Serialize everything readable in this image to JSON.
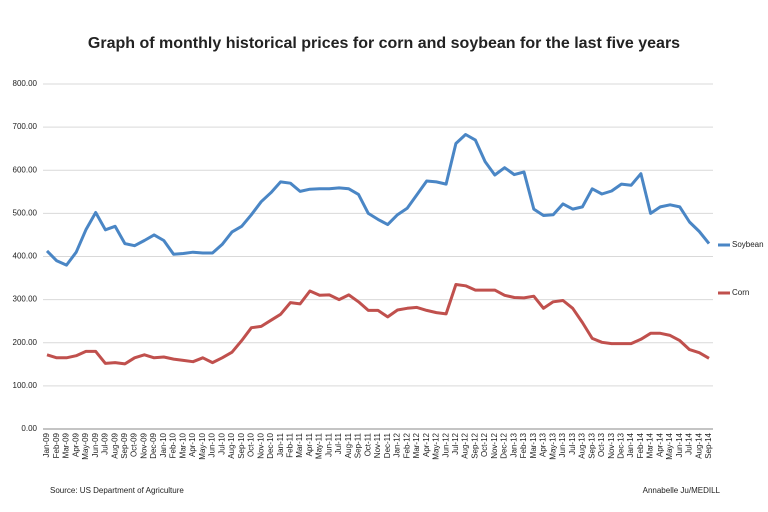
{
  "chart_data": {
    "type": "line",
    "title": "Graph of monthly historical prices for corn and soybean for the last five years",
    "source": "Source: US Department of Agriculture",
    "credit": "Annabelle Ju/MEDILL",
    "categories": [
      "Jan-09",
      "Feb-09",
      "Mar-09",
      "Apr-09",
      "May-09",
      "Jun-09",
      "Jul-09",
      "Aug-09",
      "Sep-09",
      "Oct-09",
      "Nov-09",
      "Dec-09",
      "Jan-10",
      "Feb-10",
      "Mar-10",
      "Apr-10",
      "May-10",
      "Jun-10",
      "Jul-10",
      "Aug-10",
      "Sep-10",
      "Oct-10",
      "Nov-10",
      "Dec-10",
      "Jan-11",
      "Feb-11",
      "Mar-11",
      "Apr-11",
      "May-11",
      "Jun-11",
      "Jul-11",
      "Aug-11",
      "Sep-11",
      "Oct-11",
      "Nov-11",
      "Dec-11",
      "Jan-12",
      "Feb-12",
      "Mar-12",
      "Apr-12",
      "May-12",
      "Jun-12",
      "Jul-12",
      "Aug-12",
      "Sep-12",
      "Oct-12",
      "Nov-12",
      "Dec-12",
      "Jan-13",
      "Feb-13",
      "Mar-13",
      "Apr-13",
      "May-13",
      "Jun-13",
      "Jul-13",
      "Aug-13",
      "Sep-13",
      "Oct-13",
      "Nov-13",
      "Dec-13",
      "Jan-14",
      "Feb-14",
      "Mar-14",
      "Apr-14",
      "May-14",
      "Jun-14",
      "Jul-14",
      "Aug-14",
      "Sep-14"
    ],
    "series": [
      {
        "name": "Soybean",
        "color": "#4a86c5",
        "values": [
          413,
          390,
          380,
          410,
          462,
          502,
          462,
          470,
          430,
          425,
          437,
          450,
          437,
          405,
          407,
          410,
          408,
          408,
          428,
          457,
          470,
          497,
          527,
          548,
          573,
          570,
          551,
          556,
          557,
          557,
          559,
          557,
          544,
          500,
          486,
          474,
          497,
          512,
          543,
          575,
          573,
          568,
          662,
          683,
          670,
          620,
          589,
          606,
          590,
          596,
          510,
          495,
          497,
          522,
          510,
          515,
          557,
          545,
          552,
          568,
          565,
          592,
          500,
          515,
          520,
          515,
          480,
          458,
          430
        ]
      },
      {
        "name": "Corn",
        "color": "#c0504d",
        "values": [
          172,
          165,
          165,
          170,
          180,
          180,
          152,
          154,
          151,
          165,
          172,
          165,
          167,
          162,
          159,
          156,
          165,
          154,
          165,
          178,
          205,
          235,
          238,
          252,
          266,
          293,
          290,
          320,
          310,
          311,
          300,
          311,
          295,
          275,
          275,
          260,
          276,
          280,
          282,
          275,
          270,
          267,
          335,
          332,
          322,
          322,
          322,
          310,
          305,
          304,
          308,
          280,
          295,
          298,
          280,
          247,
          210,
          201,
          198,
          198,
          198,
          208,
          222,
          222,
          217,
          205,
          184,
          177,
          164
        ]
      }
    ],
    "ylim": [
      0,
      800
    ],
    "yticks": [
      {
        "value": 0,
        "label": "0.00"
      },
      {
        "value": 100,
        "label": "100.00"
      },
      {
        "value": 200,
        "label": "200.00"
      },
      {
        "value": 300,
        "label": "300.00"
      },
      {
        "value": 400,
        "label": "400.00"
      },
      {
        "value": 500,
        "label": "500.00"
      },
      {
        "value": 600,
        "label": "600.00"
      },
      {
        "value": 700,
        "label": "700.00"
      },
      {
        "value": 800,
        "label": "800.00"
      }
    ],
    "grid": true
  }
}
